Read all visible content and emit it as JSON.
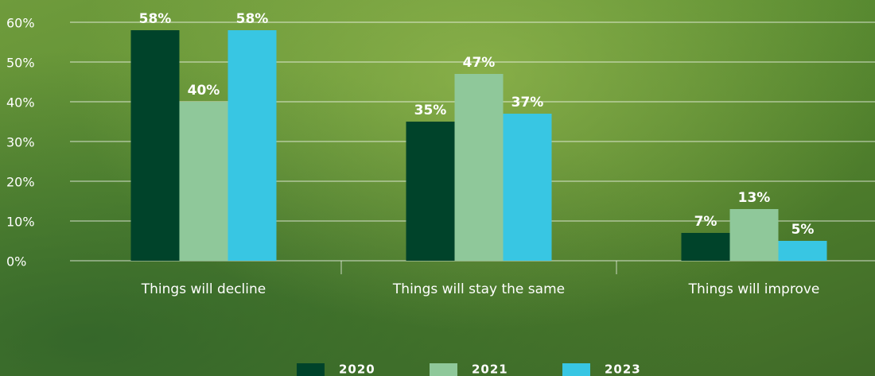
{
  "chart_data": {
    "type": "bar",
    "categories": [
      "Things will decline",
      "Things will stay the same",
      "Things will improve"
    ],
    "series": [
      {
        "name": "2020",
        "color": "#00432a",
        "values": [
          58,
          35,
          7
        ],
        "value_labels": [
          "58%",
          "35%",
          "7%"
        ]
      },
      {
        "name": "2021",
        "color": "#8fc89a",
        "values": [
          40,
          47,
          13
        ],
        "value_labels": [
          "40%",
          "47%",
          "13%"
        ]
      },
      {
        "name": "2023",
        "color": "#38c6e3",
        "values": [
          58,
          37,
          5
        ],
        "value_labels": [
          "58%",
          "37%",
          "5%"
        ]
      }
    ],
    "ylim": [
      0,
      60
    ],
    "yticks": [
      {
        "value": 0,
        "label": "0%"
      },
      {
        "value": 10,
        "label": "10%"
      },
      {
        "value": 20,
        "label": "20%"
      },
      {
        "value": 30,
        "label": "30%"
      },
      {
        "value": 40,
        "label": "40%"
      },
      {
        "value": 50,
        "label": "50%"
      },
      {
        "value": 60,
        "label": "60%"
      }
    ],
    "grid": true,
    "legend": "bottom"
  }
}
